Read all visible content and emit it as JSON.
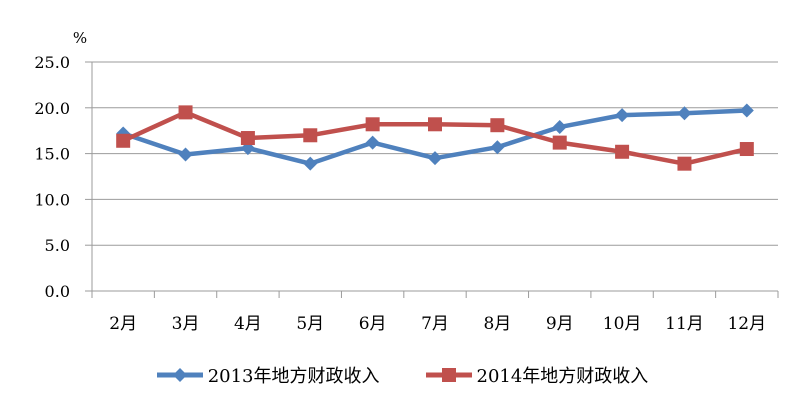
{
  "chart_data": {
    "type": "line",
    "categories": [
      "2月",
      "3月",
      "4月",
      "5月",
      "6月",
      "7月",
      "8月",
      "9月",
      "10月",
      "11月",
      "12月"
    ],
    "series": [
      {
        "name": "2013年地方财政收入",
        "color": "#4F81BD",
        "marker": "diamond",
        "values": [
          17.2,
          14.9,
          15.6,
          13.9,
          16.2,
          14.5,
          15.7,
          17.9,
          19.2,
          19.4,
          19.7
        ]
      },
      {
        "name": "2014年地方财政收入",
        "color": "#C0504D",
        "marker": "square",
        "values": [
          16.4,
          19.5,
          16.7,
          17.0,
          18.2,
          18.2,
          18.1,
          16.2,
          15.2,
          13.9,
          15.5
        ]
      }
    ],
    "title": "",
    "xlabel": "",
    "ylabel": "%",
    "ylim": [
      0,
      25
    ],
    "ytick_step": 5,
    "ytick_labels": [
      "0.0",
      "5.0",
      "10.0",
      "15.0",
      "20.0",
      "25.0"
    ],
    "grid": true,
    "legend_position": "bottom"
  },
  "colors": {
    "grid": "#9B9B9B",
    "axis": "#9B9B9B",
    "text": "#000000",
    "background": "#FFFFFF"
  }
}
